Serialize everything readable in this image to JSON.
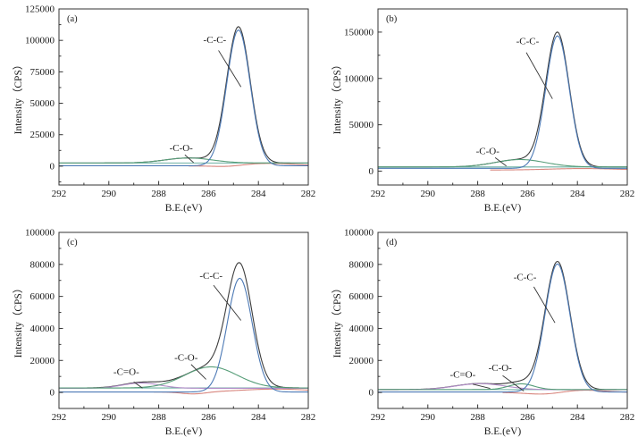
{
  "chart_data": {
    "type": "line",
    "subtype": "xps-c1s-fitted-spectra-grid",
    "xlabel": "B.E.(eV)",
    "ylabel": "Intensity（CPS）",
    "x_range": [
      292,
      282
    ],
    "x_axis_reversed": true,
    "x_major_ticks": [
      292,
      290,
      288,
      286,
      284,
      282
    ],
    "x_minor_ticks": [
      291,
      289,
      287,
      285,
      283
    ],
    "colors": {
      "envelope": "#3c3c3c",
      "c_c_peak": "#4c79b5",
      "c_o_peak": "#569d78",
      "c_dbl_o_peak": "#b18cc8",
      "background_line": "#6cb0a2",
      "residual_red": "#d8867e",
      "axis": "#333333",
      "leader_line": "#333333"
    },
    "panels": [
      {
        "label": "(a)",
        "ylim": [
          -15000,
          125000
        ],
        "yticks": [
          0,
          25000,
          50000,
          75000,
          100000,
          125000
        ],
        "baseline": 2500,
        "envelope": {
          "name": "envelope",
          "colorKey": "envelope"
        },
        "components": [
          {
            "name": "background",
            "colorKey": "background_line",
            "base": 2500,
            "gaussians": [],
            "in_envelope": false
          },
          {
            "name": "residual-red",
            "colorKey": "residual_red",
            "base": 0,
            "x_start": 286.8,
            "gaussians": [
              {
                "c": 283.7,
                "s": 1.3,
                "a": 2200
              },
              {
                "c": 285.2,
                "s": 0.6,
                "a": -1200
              }
            ],
            "in_envelope": false
          },
          {
            "name": "C-O",
            "colorKey": "c_o_peak",
            "base": 2500,
            "gaussians": [
              {
                "c": 286.8,
                "s": 0.95,
                "a": 4000
              }
            ],
            "in_envelope": true
          },
          {
            "name": "C-C",
            "colorKey": "c_c_peak",
            "base": 300,
            "gaussians": [
              {
                "c": 284.8,
                "s": 0.47,
                "a": 108000
              }
            ],
            "in_envelope": true
          }
        ],
        "annotations": [
          {
            "text": "-C-C-",
            "x": 285.75,
            "y": 98000,
            "line": [
              285.6,
              92000,
              284.7,
              63000
            ]
          },
          {
            "text": "-C-O-",
            "x": 287.1,
            "y": 12000,
            "line": [
              286.95,
              9000,
              286.6,
              2800
            ]
          }
        ]
      },
      {
        "label": "(b)",
        "ylim": [
          -15000,
          175000
        ],
        "yticks": [
          0,
          50000,
          100000,
          150000
        ],
        "baseline": 4500,
        "envelope": {
          "name": "envelope",
          "colorKey": "envelope"
        },
        "components": [
          {
            "name": "background",
            "colorKey": "background_line",
            "base": 4500,
            "gaussians": [],
            "in_envelope": false
          },
          {
            "name": "residual-red",
            "colorKey": "residual_red",
            "base": 1200,
            "x_start": 287.5,
            "gaussians": [
              {
                "c": 283.8,
                "s": 1.3,
                "a": 1600
              }
            ],
            "in_envelope": false
          },
          {
            "name": "C-O",
            "colorKey": "c_o_peak",
            "base": 4500,
            "gaussians": [
              {
                "c": 286.3,
                "s": 1.0,
                "a": 8000
              }
            ],
            "in_envelope": true
          },
          {
            "name": "C-C",
            "colorKey": "c_c_peak",
            "base": 3000,
            "gaussians": [
              {
                "c": 284.8,
                "s": 0.47,
                "a": 143000
              }
            ],
            "in_envelope": true
          }
        ],
        "annotations": [
          {
            "text": "-C-C-",
            "x": 286.0,
            "y": 137000,
            "line": [
              286.05,
              128000,
              285.0,
              78000
            ]
          },
          {
            "text": "-C-O-",
            "x": 287.6,
            "y": 18500,
            "line": [
              287.3,
              14500,
              286.85,
              5500
            ]
          }
        ]
      },
      {
        "label": "(c)",
        "ylim": [
          -10000,
          100000
        ],
        "yticks": [
          0,
          20000,
          40000,
          60000,
          80000,
          100000
        ],
        "baseline": 2800,
        "envelope": {
          "name": "envelope",
          "colorKey": "envelope"
        },
        "components": [
          {
            "name": "background",
            "colorKey": "background_line",
            "base": 2800,
            "gaussians": [],
            "in_envelope": false
          },
          {
            "name": "residual-red",
            "colorKey": "residual_red",
            "base": 300,
            "x_start": 288.2,
            "gaussians": [
              {
                "c": 283.3,
                "s": 1.4,
                "a": 1800
              },
              {
                "c": 286.6,
                "s": 0.5,
                "a": -1300
              }
            ],
            "in_envelope": false
          },
          {
            "name": "C=O",
            "colorKey": "c_dbl_o_peak",
            "base": 2600,
            "gaussians": [
              {
                "c": 288.7,
                "s": 0.75,
                "a": 3300
              }
            ],
            "in_envelope": true
          },
          {
            "name": "C-O",
            "colorKey": "c_o_peak",
            "base": 2800,
            "gaussians": [
              {
                "c": 285.9,
                "s": 1.05,
                "a": 13200
              }
            ],
            "in_envelope": true
          },
          {
            "name": "C-C",
            "colorKey": "c_c_peak",
            "base": 300,
            "gaussians": [
              {
                "c": 284.75,
                "s": 0.5,
                "a": 71000
              }
            ],
            "in_envelope": true
          }
        ],
        "annotations": [
          {
            "text": "-C-C-",
            "x": 285.9,
            "y": 71000,
            "line": [
              285.8,
              67000,
              284.7,
              45000
            ]
          },
          {
            "text": "-C-O-",
            "x": 286.9,
            "y": 20000,
            "line": [
              286.7,
              17500,
              286.1,
              8200
            ]
          },
          {
            "text": "-C=O-",
            "x": 289.3,
            "y": 10900,
            "line": [
              289.0,
              6600,
              288.65,
              2700
            ]
          }
        ]
      },
      {
        "label": "(d)",
        "ylim": [
          -10000,
          100000
        ],
        "yticks": [
          0,
          20000,
          40000,
          60000,
          80000,
          100000
        ],
        "baseline": 1800,
        "envelope": {
          "name": "envelope",
          "colorKey": "envelope"
        },
        "components": [
          {
            "name": "background",
            "colorKey": "background_line",
            "base": 1800,
            "gaussians": [],
            "in_envelope": false
          },
          {
            "name": "residual-red",
            "colorKey": "residual_red",
            "base": 0,
            "x_start": 287.0,
            "gaussians": [
              {
                "c": 283.8,
                "s": 0.9,
                "a": 1500
              },
              {
                "c": 285.3,
                "s": 0.7,
                "a": -1300
              }
            ],
            "in_envelope": false
          },
          {
            "name": "C=O",
            "colorKey": "c_dbl_o_peak",
            "base": 1700,
            "gaussians": [
              {
                "c": 287.9,
                "s": 1.0,
                "a": 3800
              }
            ],
            "in_envelope": true
          },
          {
            "name": "C-O",
            "colorKey": "c_o_peak",
            "base": 1800,
            "gaussians": [
              {
                "c": 286.25,
                "s": 0.5,
                "a": 3600
              }
            ],
            "in_envelope": true
          },
          {
            "name": "C-C",
            "colorKey": "c_c_peak",
            "base": 300,
            "gaussians": [
              {
                "c": 284.8,
                "s": 0.5,
                "a": 80000
              }
            ],
            "in_envelope": true
          }
        ],
        "annotations": [
          {
            "text": "-C-C-",
            "x": 286.1,
            "y": 70000,
            "line": [
              285.75,
              66000,
              284.9,
              43500
            ]
          },
          {
            "text": "-C-O-",
            "x": 287.1,
            "y": 13500,
            "line": [
              287.0,
              10500,
              286.15,
              900
            ]
          },
          {
            "text": "-C=O-",
            "x": 288.6,
            "y": 9300,
            "line": [
              288.2,
              5200,
              287.5,
              2500
            ]
          }
        ]
      }
    ]
  }
}
